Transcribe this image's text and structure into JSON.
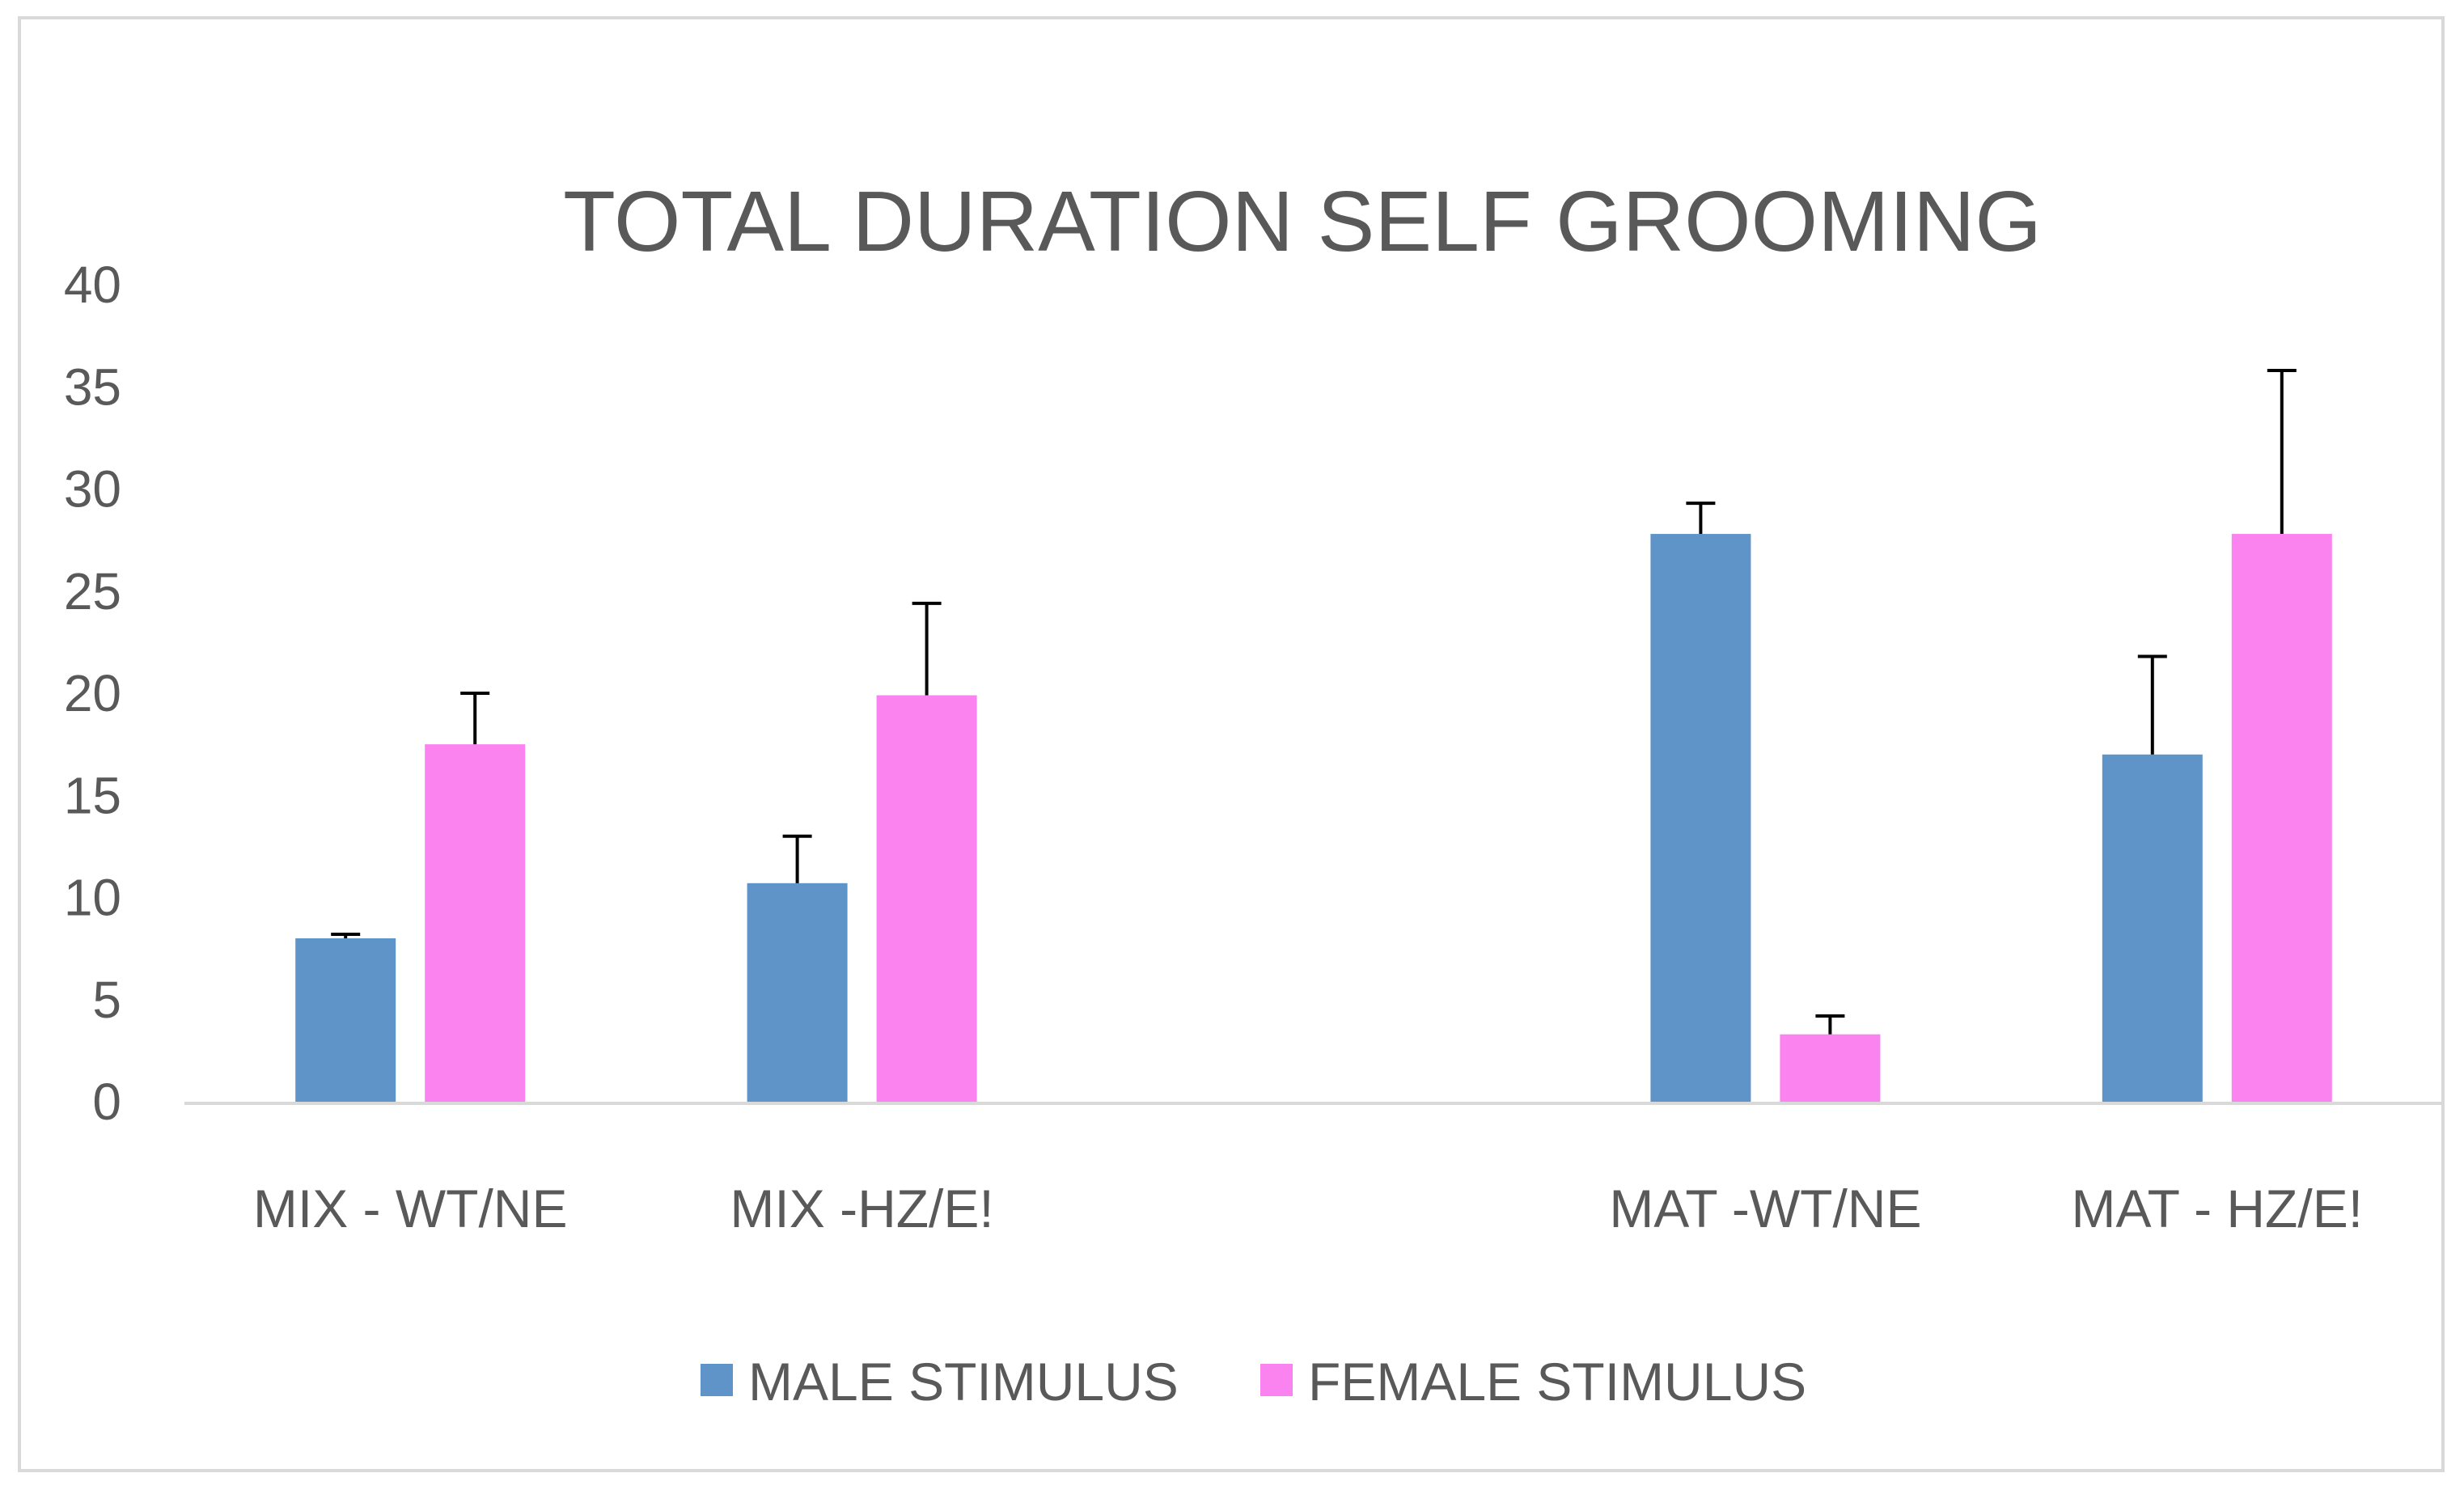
{
  "chart_data": {
    "type": "bar",
    "title": "TOTAL DURATION SELF GROOMING",
    "xlabel": "",
    "ylabel": "",
    "ylim": [
      0,
      40
    ],
    "yticks": [
      0,
      5,
      10,
      15,
      20,
      25,
      30,
      35,
      40
    ],
    "grid": false,
    "legend_position": "bottom",
    "categories": [
      "MIX - WT/NE",
      "MIX -HZ/E!",
      "",
      "MAT -WT/NE",
      "MAT - HZ/E!"
    ],
    "series": [
      {
        "name": "MALE STIMULUS",
        "color": "#5f94c8",
        "values": [
          8,
          10.7,
          null,
          27.8,
          17
        ],
        "errors": [
          0.2,
          2.3,
          null,
          1.5,
          4.8
        ]
      },
      {
        "name": "FEMALE STIMULUS",
        "color": "#fb83f0",
        "values": [
          17.5,
          19.9,
          null,
          3.3,
          27.8
        ],
        "errors": [
          2.5,
          4.5,
          null,
          0.9,
          8
        ]
      }
    ],
    "axis_color": "#d9d9d9",
    "errorbar_color": "#000000"
  }
}
